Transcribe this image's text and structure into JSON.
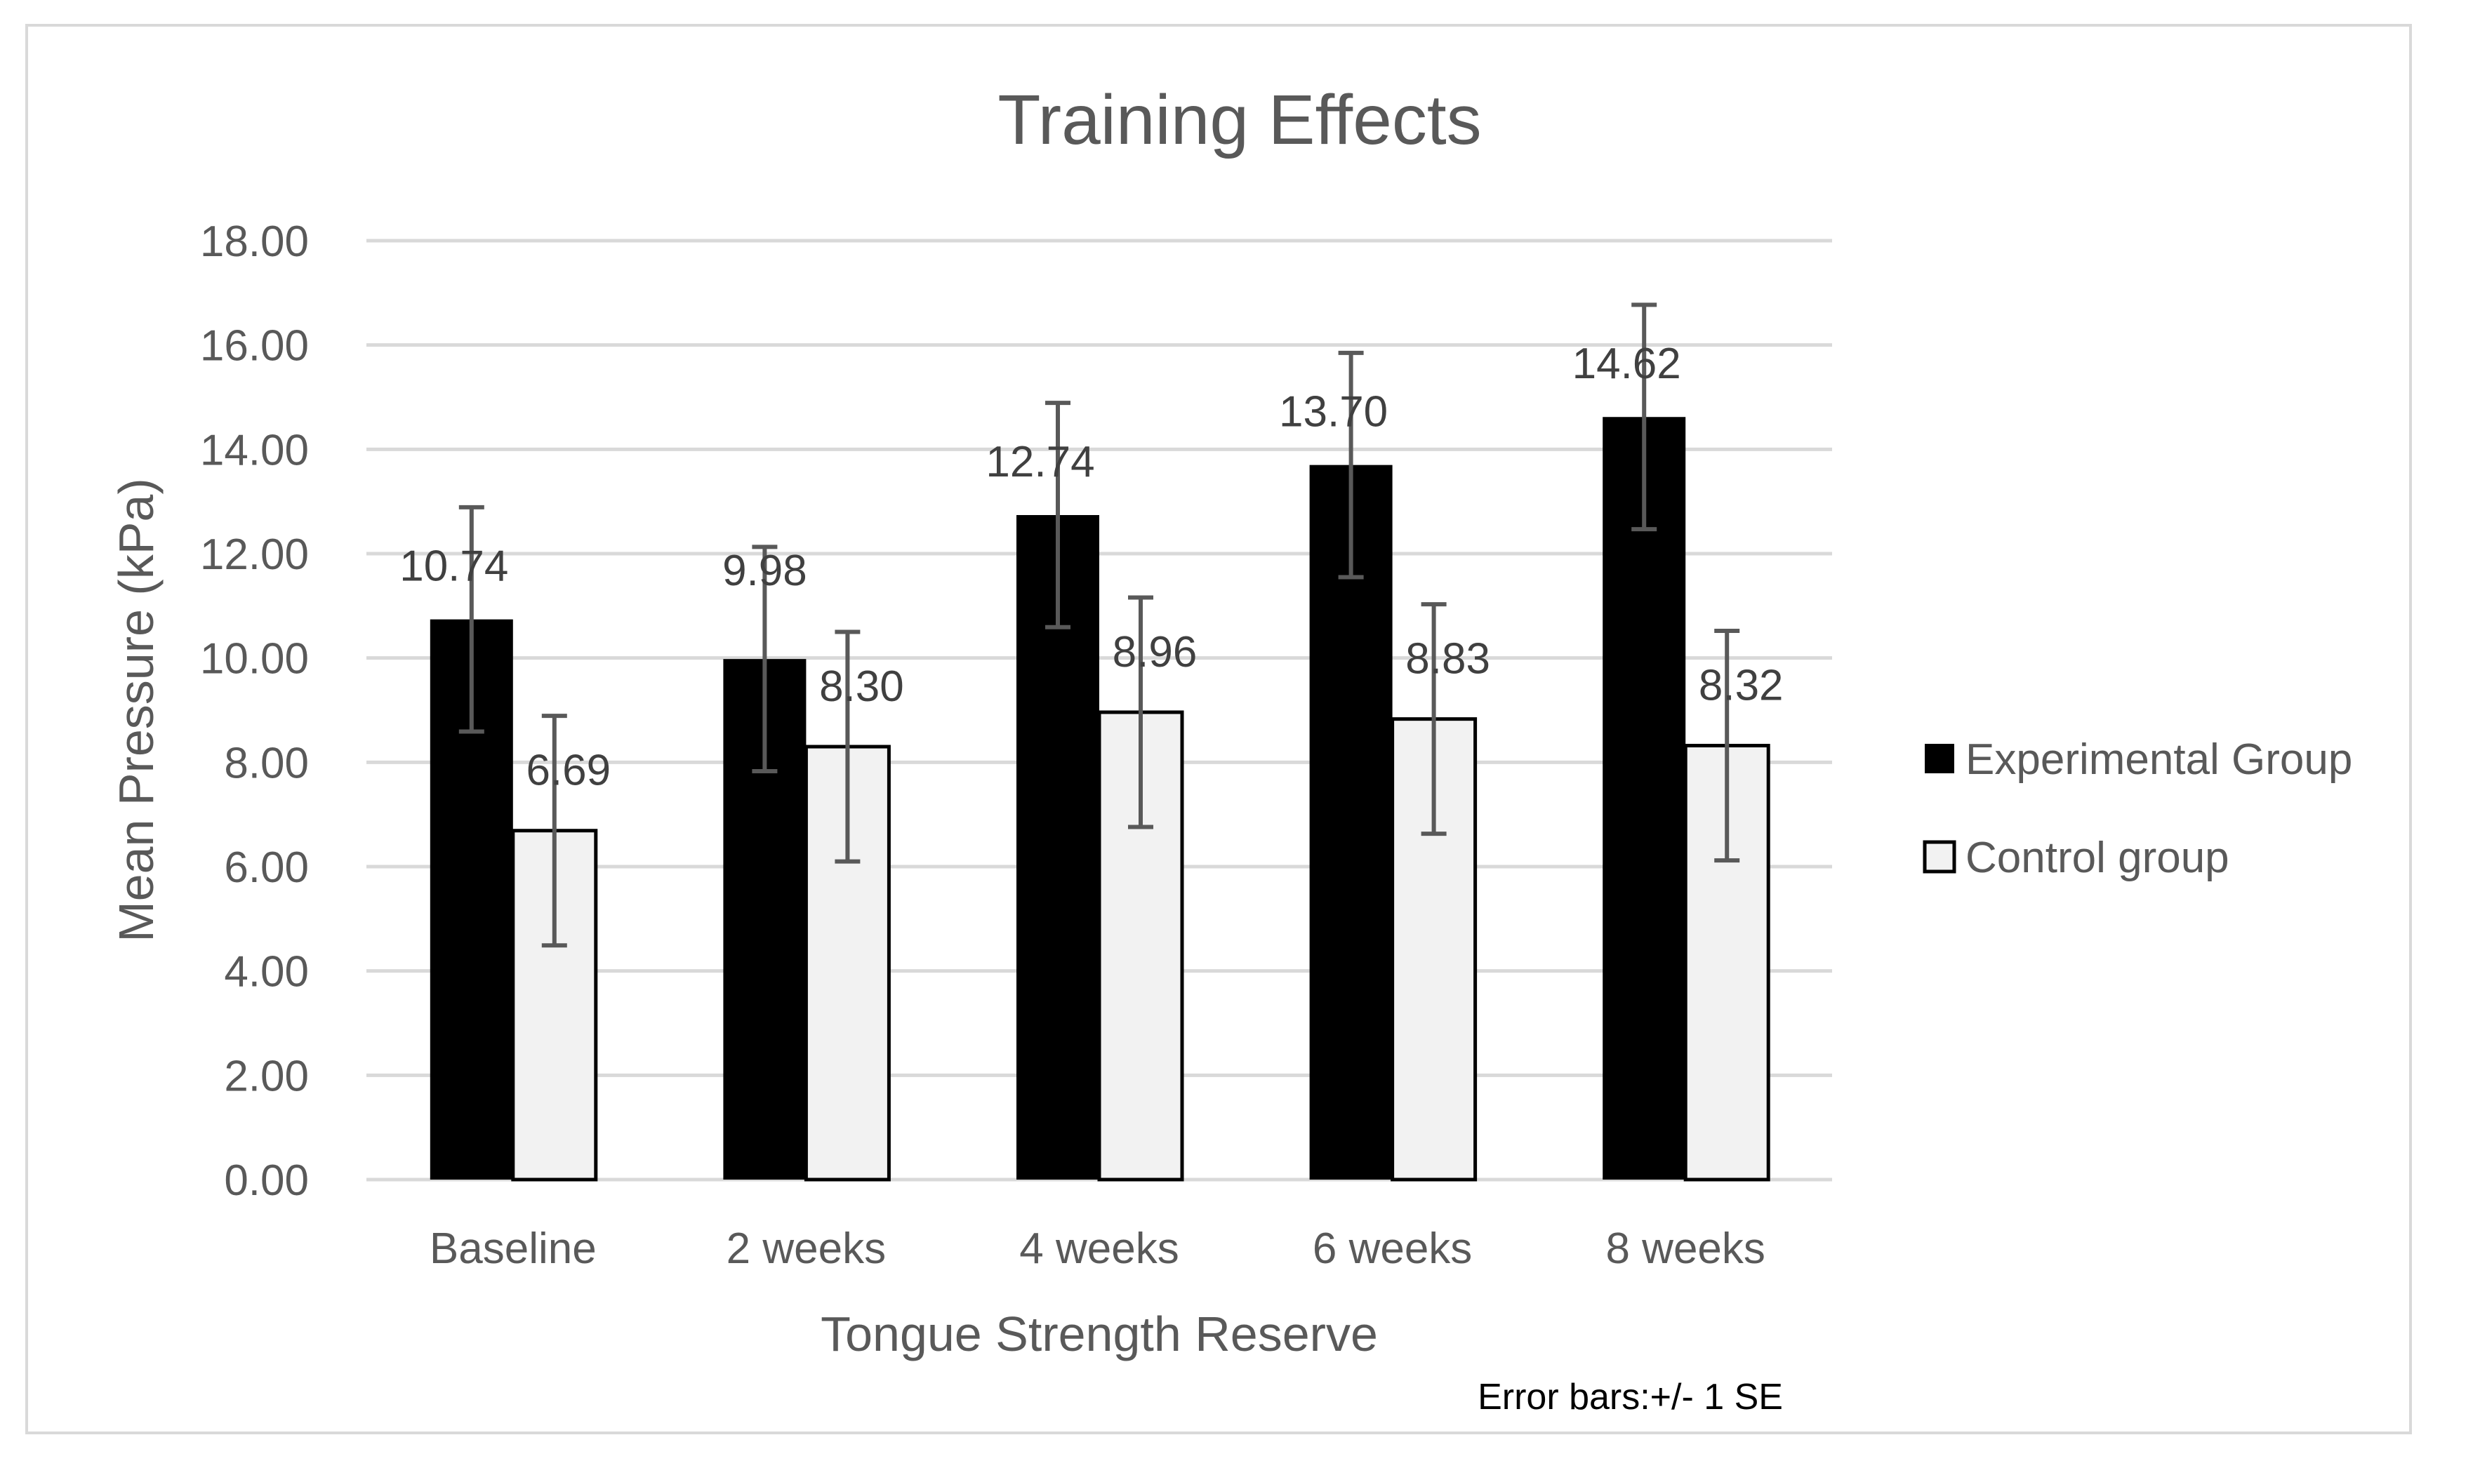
{
  "chart_data": {
    "type": "bar",
    "title": "Training Effects",
    "xlabel": "Tongue Strength Reserve",
    "ylabel": "Mean Pressure (kPa)",
    "ylim": [
      0,
      18
    ],
    "ytick_step": 2,
    "ytick_labels": [
      "0.00",
      "2.00",
      "4.00",
      "6.00",
      "8.00",
      "10.00",
      "12.00",
      "14.00",
      "16.00",
      "18.00"
    ],
    "categories": [
      "Baseline",
      "2 weeks",
      "4 weeks",
      "6 weeks",
      "8 weeks"
    ],
    "series": [
      {
        "name": "Experimental Group",
        "color": "#000000",
        "values": [
          10.74,
          9.98,
          12.74,
          13.7,
          14.62
        ],
        "labels": [
          "10.74",
          "9.98",
          "12.74",
          "13.70",
          "14.62"
        ],
        "error": [
          2.15,
          2.15,
          2.15,
          2.15,
          2.15
        ]
      },
      {
        "name": "Control group",
        "color": "#f2f2f2",
        "values": [
          6.69,
          8.3,
          8.96,
          8.83,
          8.32
        ],
        "labels": [
          "6.69",
          "8.30",
          "8.96",
          "8.83",
          "8.32"
        ],
        "error": [
          2.2,
          2.2,
          2.2,
          2.2,
          2.2
        ]
      }
    ],
    "gridlines": true,
    "legend_position": "right",
    "note": "Error bars:+/- 1 SE"
  }
}
